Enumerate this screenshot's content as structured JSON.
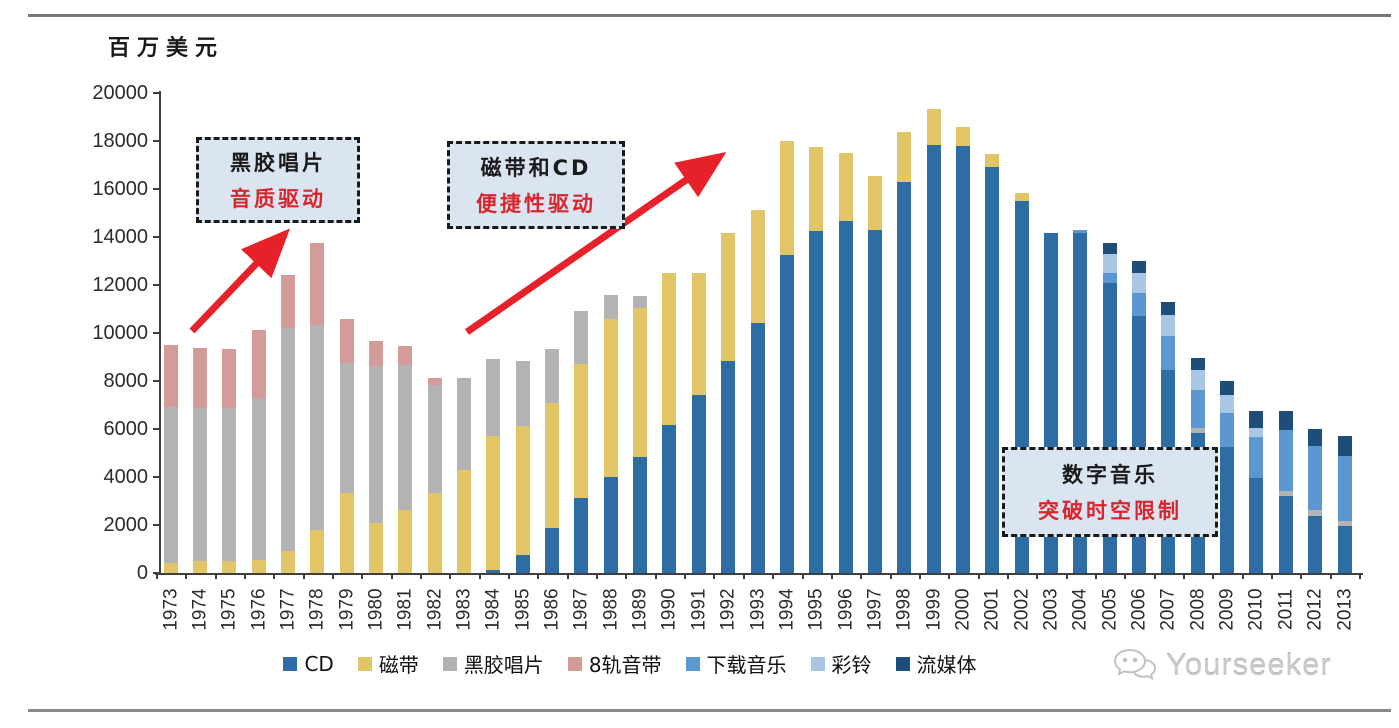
{
  "page": {
    "unit_label": "百万美元"
  },
  "annotations": [
    {
      "line1": "黑胶唱片",
      "line2": "音质驱动"
    },
    {
      "line1": "磁带和CD",
      "line2": "便捷性驱动"
    },
    {
      "line1": "数字音乐",
      "line2": "突破时空限制"
    }
  ],
  "watermark": {
    "text": "Yourseeker",
    "icon": "wechat-chat-bubbles-icon"
  },
  "colors": {
    "accent_red": "#e62129",
    "annotation_bg": "#dbe5f1",
    "annotation_border": "#1a1a1a",
    "annotation_text_red": "#d9262c",
    "axis": "#3f3f3f",
    "watermark_gray": "#c9c9c9"
  },
  "chart_data": {
    "type": "bar",
    "stacked": true,
    "title": "百万美元",
    "xlabel": "",
    "ylabel": "百万美元",
    "ylim": [
      0,
      20000
    ],
    "ytick_step": 2000,
    "grid": false,
    "legend_position": "bottom",
    "categories": [
      1973,
      1974,
      1975,
      1976,
      1977,
      1978,
      1979,
      1980,
      1981,
      1982,
      1983,
      1984,
      1985,
      1986,
      1987,
      1988,
      1989,
      1990,
      1991,
      1992,
      1993,
      1994,
      1995,
      1996,
      1997,
      1998,
      1999,
      2000,
      2001,
      2002,
      2003,
      2004,
      2005,
      2006,
      2007,
      2008,
      2009,
      2010,
      2011,
      2012,
      2013
    ],
    "series": [
      {
        "name": "CD",
        "color": "#2e6da4",
        "values": [
          0,
          0,
          0,
          0,
          0,
          0,
          0,
          0,
          0,
          0,
          0,
          140,
          760,
          1880,
          3130,
          3980,
          4820,
          6150,
          7400,
          8830,
          10420,
          13230,
          14230,
          14680,
          14300,
          16280,
          17850,
          17780,
          16900,
          15510,
          14150,
          14150,
          12080,
          10700,
          8470,
          5830,
          5270,
          3960,
          3190,
          2360,
          1940
        ]
      },
      {
        "name": "磁带",
        "color": "#e2c566",
        "values": [
          400,
          480,
          480,
          550,
          900,
          1800,
          3320,
          2080,
          2640,
          3330,
          4310,
          5560,
          5350,
          5210,
          5560,
          6600,
          6230,
          6350,
          5100,
          5340,
          4710,
          4750,
          3520,
          2840,
          2250,
          2080,
          1490,
          810,
          570,
          320,
          0,
          0,
          0,
          0,
          0,
          0,
          0,
          0,
          0,
          0,
          0
        ]
      },
      {
        "name": "黑胶唱片",
        "color": "#b3b3b3",
        "values": [
          6500,
          6400,
          6380,
          6740,
          9310,
          8540,
          5420,
          6530,
          6040,
          4510,
          3820,
          3200,
          2710,
          2250,
          2210,
          990,
          490,
          0,
          0,
          0,
          0,
          0,
          0,
          0,
          0,
          0,
          0,
          0,
          0,
          0,
          0,
          0,
          0,
          0,
          0,
          210,
          0,
          0,
          210,
          280,
          210
        ]
      },
      {
        "name": "8轨音带",
        "color": "#d49c99",
        "values": [
          2600,
          2500,
          2480,
          2820,
          2220,
          3430,
          1860,
          1040,
          760,
          280,
          0,
          0,
          0,
          0,
          0,
          0,
          0,
          0,
          0,
          0,
          0,
          0,
          0,
          0,
          0,
          0,
          0,
          0,
          0,
          0,
          0,
          0,
          0,
          0,
          0,
          0,
          0,
          0,
          0,
          0,
          0
        ]
      },
      {
        "name": "下载音乐",
        "color": "#5b97d0",
        "values": [
          0,
          0,
          0,
          0,
          0,
          0,
          0,
          0,
          0,
          0,
          0,
          0,
          0,
          0,
          0,
          0,
          0,
          0,
          0,
          0,
          0,
          0,
          0,
          0,
          0,
          0,
          0,
          0,
          0,
          0,
          0,
          150,
          440,
          980,
          1390,
          1600,
          1390,
          1700,
          2570,
          2640,
          2710
        ]
      },
      {
        "name": "彩铃",
        "color": "#a9c7e5",
        "values": [
          0,
          0,
          0,
          0,
          0,
          0,
          0,
          0,
          0,
          0,
          0,
          0,
          0,
          0,
          0,
          0,
          0,
          0,
          0,
          0,
          0,
          0,
          0,
          0,
          0,
          0,
          0,
          0,
          0,
          0,
          0,
          0,
          760,
          830,
          900,
          830,
          760,
          380,
          0,
          0,
          0
        ]
      },
      {
        "name": "流媒体",
        "color": "#1c4e79",
        "values": [
          0,
          0,
          0,
          0,
          0,
          0,
          0,
          0,
          0,
          0,
          0,
          0,
          0,
          0,
          0,
          0,
          0,
          0,
          0,
          0,
          0,
          0,
          0,
          0,
          0,
          0,
          0,
          0,
          0,
          0,
          0,
          0,
          470,
          480,
          550,
          490,
          560,
          690,
          760,
          700,
          830
        ]
      }
    ]
  }
}
